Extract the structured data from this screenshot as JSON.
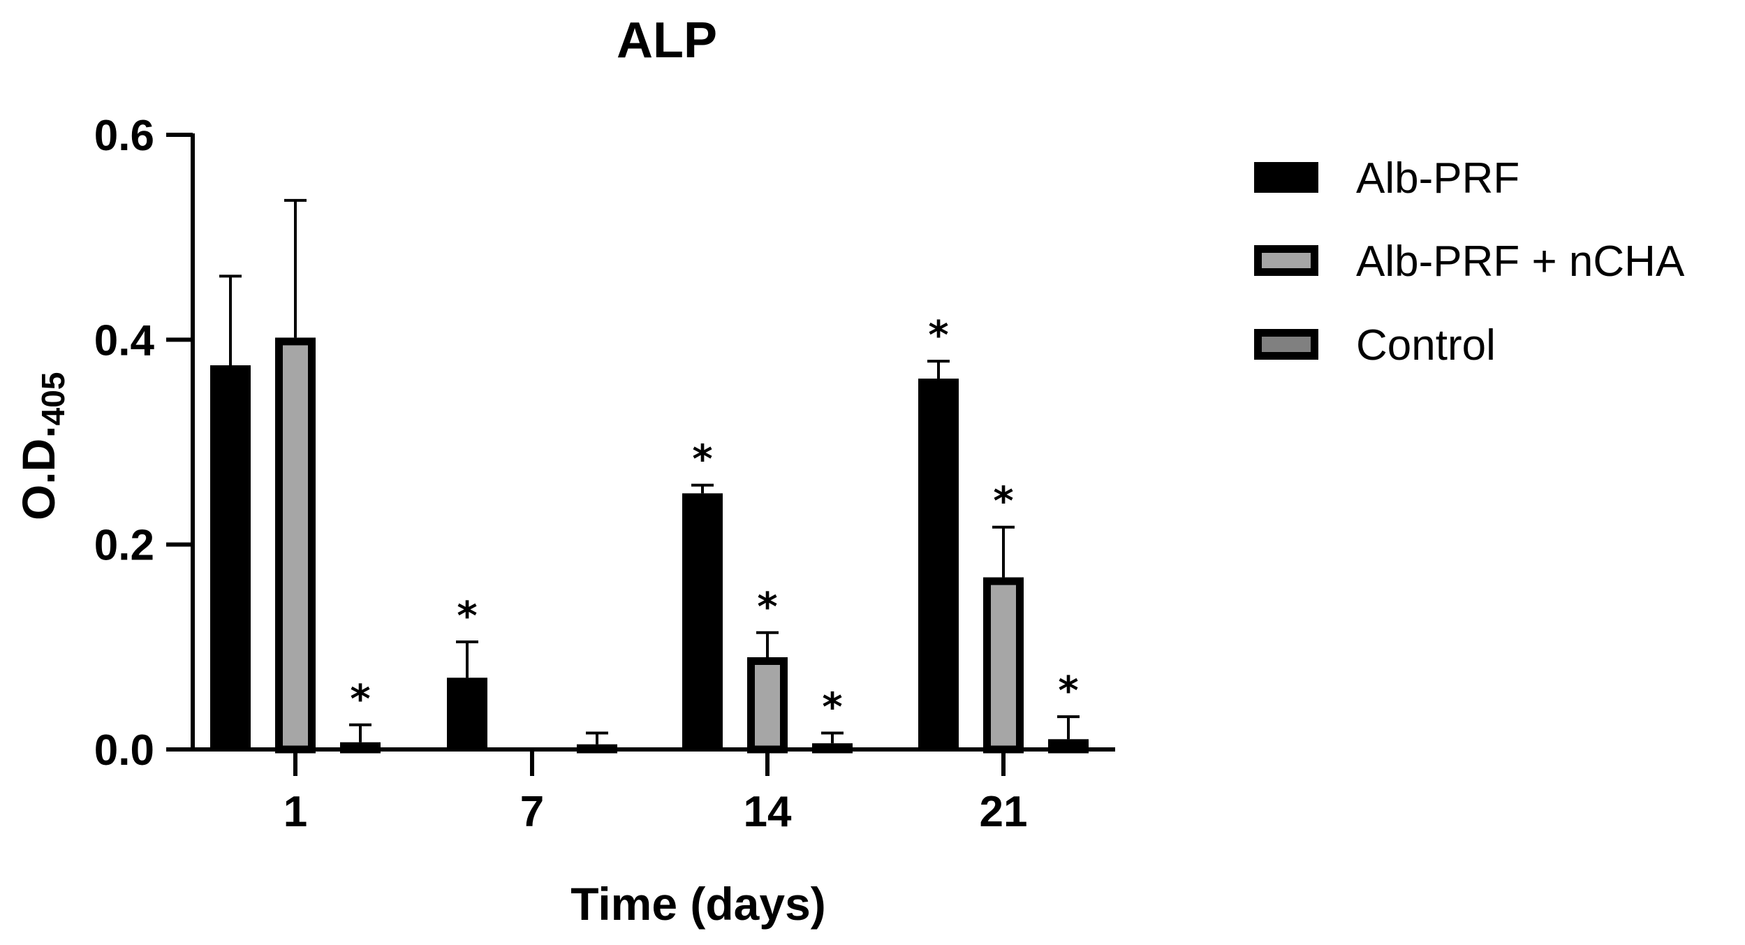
{
  "chart_data": {
    "type": "bar",
    "title": "ALP",
    "xlabel": "Time (days)",
    "ylabel_main": "O.D.",
    "ylabel_sub": "405",
    "categories": [
      "1",
      "7",
      "14",
      "21"
    ],
    "ylim": [
      0,
      0.6
    ],
    "yticks": [
      "0.0",
      "0.2",
      "0.4",
      "0.6"
    ],
    "grid": false,
    "legend_position": "right",
    "series": [
      {
        "name": "Alb-PRF",
        "color": "#000000",
        "values": [
          0.375,
          0.07,
          0.25,
          0.362
        ],
        "errors": [
          0.087,
          0.035,
          0.008,
          0.017
        ],
        "significant": [
          false,
          true,
          true,
          true
        ]
      },
      {
        "name": "Alb-PRF + nCHA",
        "color": "#a6a6a6",
        "values": [
          0.402,
          0.0,
          0.09,
          0.168
        ],
        "errors": [
          0.134,
          0.0,
          0.024,
          0.049
        ],
        "significant": [
          false,
          false,
          true,
          true
        ]
      },
      {
        "name": "Control",
        "color": "#808080",
        "values": [
          0.007,
          0.005,
          0.006,
          0.01
        ],
        "errors": [
          0.017,
          0.011,
          0.01,
          0.022
        ],
        "significant": [
          true,
          false,
          true,
          true
        ]
      }
    ],
    "significance_marker": "*"
  }
}
